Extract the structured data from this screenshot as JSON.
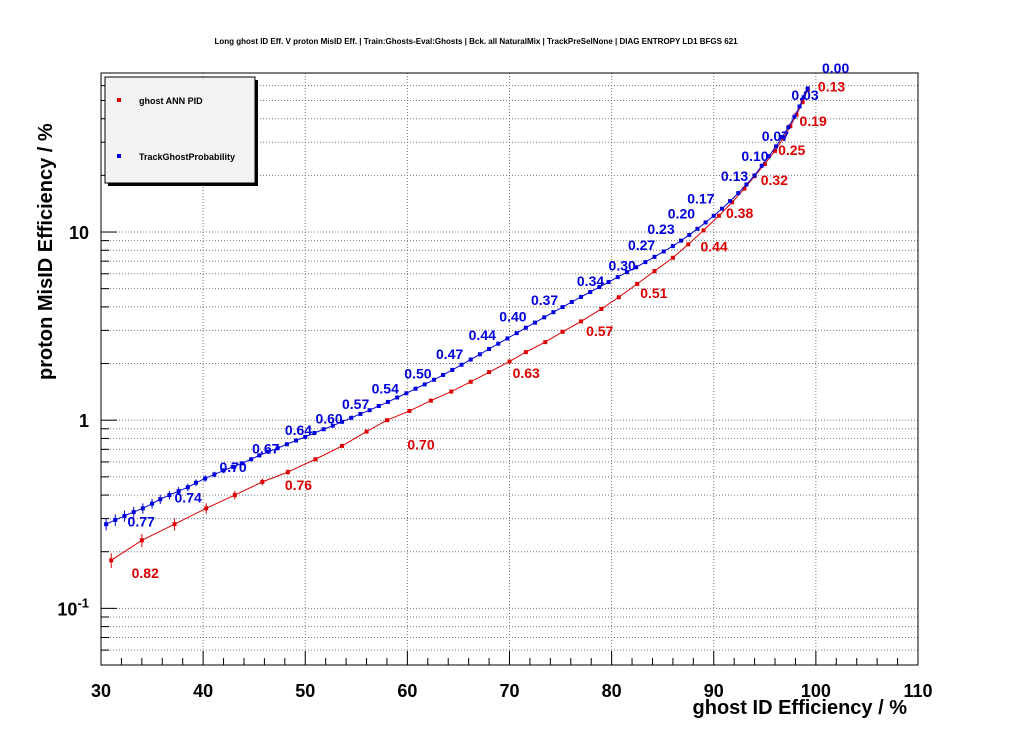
{
  "chart_data": {
    "type": "scatter",
    "title": "Long ghost ID Eff. V proton MisID Eff. | Train:Ghosts-Eval:Ghosts | Bck. all NaturalMix | TrackPreSelNone | DIAG ENTROPY LD1 BFGS 621",
    "xlabel": "ghost ID Efficiency / %",
    "ylabel": "proton MisID Efficiency / %",
    "xlim": [
      30,
      110
    ],
    "ylim": [
      0.05,
      70
    ],
    "y_scale": "log",
    "grid": true,
    "legend_position": "top-left",
    "x_ticks": [
      "30",
      "40",
      "50",
      "60",
      "70",
      "80",
      "90",
      "100",
      "110"
    ],
    "y_ticks": [
      {
        "value": 0.1,
        "base": "10",
        "exp": "-1"
      },
      {
        "value": 1,
        "base": "1",
        "exp": ""
      },
      {
        "value": 10,
        "base": "10",
        "exp": ""
      }
    ],
    "colors": {
      "ghost_ann_pid": "#dd0000",
      "track_ghost_probability": "#0000dd"
    },
    "series": [
      {
        "name": "ghost ANN PID",
        "color": "#dd0000",
        "x": [
          31,
          34,
          37.2,
          40.3,
          43.1,
          45.8,
          48.3,
          51,
          53.6,
          56,
          58,
          60.2,
          62.3,
          64.3,
          66.2,
          68,
          70,
          71.6,
          73.5,
          75.2,
          77,
          79,
          80.7,
          82.5,
          84.2,
          86,
          87.5,
          89,
          90.5,
          91.8,
          93,
          94,
          95,
          96,
          96.8,
          97.5,
          98.1,
          98.7,
          99.2
        ],
        "y": [
          0.18,
          0.23,
          0.28,
          0.34,
          0.4,
          0.47,
          0.53,
          0.62,
          0.73,
          0.87,
          1.0,
          1.12,
          1.27,
          1.42,
          1.6,
          1.8,
          2.05,
          2.3,
          2.6,
          2.95,
          3.35,
          3.9,
          4.5,
          5.3,
          6.2,
          7.3,
          8.6,
          10.2,
          12.2,
          14.4,
          17,
          19.8,
          23,
          27,
          31.5,
          36.5,
          42,
          49,
          57
        ]
      },
      {
        "name": "TrackGhostProbability",
        "color": "#0000dd",
        "x": [
          30.5,
          31.4,
          32.3,
          33.2,
          34.1,
          35,
          35.8,
          36.7,
          37.6,
          38.5,
          39.3,
          40.2,
          41.1,
          42,
          42.9,
          43.8,
          44.7,
          45.5,
          46.4,
          47.3,
          48.2,
          49.1,
          50,
          50.9,
          51.8,
          52.7,
          53.6,
          54.5,
          55.4,
          56.3,
          57.2,
          58.1,
          59,
          59.9,
          60.8,
          61.7,
          62.6,
          63.5,
          64.4,
          65.3,
          66.2,
          67.1,
          68,
          68.9,
          69.8,
          70.7,
          71.6,
          72.5,
          73.4,
          74.3,
          75.2,
          76.1,
          77,
          77.9,
          78.8,
          79.7,
          80.6,
          81.5,
          82.4,
          83.3,
          84.2,
          85.1,
          86,
          86.8,
          87.6,
          88.4,
          89.2,
          90,
          90.8,
          91.6,
          92.4,
          93.2,
          94,
          94.7,
          95.4,
          96.1,
          96.7,
          97.3,
          97.9,
          98.4,
          98.8,
          99.2
        ],
        "y": [
          0.28,
          0.295,
          0.31,
          0.325,
          0.34,
          0.36,
          0.38,
          0.4,
          0.42,
          0.44,
          0.465,
          0.49,
          0.515,
          0.54,
          0.565,
          0.59,
          0.62,
          0.65,
          0.68,
          0.71,
          0.745,
          0.78,
          0.815,
          0.855,
          0.895,
          0.935,
          0.98,
          1.03,
          1.08,
          1.13,
          1.19,
          1.25,
          1.32,
          1.39,
          1.47,
          1.55,
          1.64,
          1.74,
          1.85,
          1.97,
          2.1,
          2.24,
          2.39,
          2.55,
          2.72,
          2.9,
          3.1,
          3.3,
          3.52,
          3.75,
          3.99,
          4.25,
          4.52,
          4.8,
          5.1,
          5.42,
          5.76,
          6.12,
          6.5,
          6.92,
          7.38,
          7.88,
          8.42,
          9.0,
          9.65,
          10.4,
          11.25,
          12.2,
          13.3,
          14.6,
          16.1,
          17.9,
          20,
          22.5,
          25.3,
          28.5,
          32,
          36,
          41,
          46.5,
          52,
          58
        ]
      }
    ],
    "annotations": {
      "red": [
        {
          "text": "0.82",
          "x": 33,
          "y": 0.145
        },
        {
          "text": "0.76",
          "x": 48,
          "y": 0.425
        },
        {
          "text": "0.70",
          "x": 60,
          "y": 0.7
        },
        {
          "text": "0.63",
          "x": 70.3,
          "y": 1.68
        },
        {
          "text": "0.57",
          "x": 77.5,
          "y": 2.8
        },
        {
          "text": "0.51",
          "x": 82.8,
          "y": 4.45
        },
        {
          "text": "0.44",
          "x": 88.7,
          "y": 7.9
        },
        {
          "text": "0.38",
          "x": 91.2,
          "y": 11.9
        },
        {
          "text": "0.32",
          "x": 94.6,
          "y": 17.8
        },
        {
          "text": "0.25",
          "x": 96.3,
          "y": 25.6
        },
        {
          "text": "0.19",
          "x": 98.4,
          "y": 36.6
        },
        {
          "text": "0.13",
          "x": 100.2,
          "y": 55.8
        }
      ],
      "blue": [
        {
          "text": "0.77",
          "x": 32.6,
          "y": 0.272
        },
        {
          "text": "0.74",
          "x": 37.2,
          "y": 0.366
        },
        {
          "text": "0.70",
          "x": 41.6,
          "y": 0.53
        },
        {
          "text": "0.67",
          "x": 44.8,
          "y": 0.667
        },
        {
          "text": "0.64",
          "x": 48,
          "y": 0.833
        },
        {
          "text": "0.60",
          "x": 51,
          "y": 0.963
        },
        {
          "text": "0.57",
          "x": 53.6,
          "y": 1.15
        },
        {
          "text": "0.54",
          "x": 56.5,
          "y": 1.39
        },
        {
          "text": "0.50",
          "x": 59.7,
          "y": 1.67
        },
        {
          "text": "0.47",
          "x": 62.8,
          "y": 2.11
        },
        {
          "text": "0.44",
          "x": 66,
          "y": 2.66
        },
        {
          "text": "0.40",
          "x": 69,
          "y": 3.35
        },
        {
          "text": "0.37",
          "x": 72.1,
          "y": 4.09
        },
        {
          "text": "0.34",
          "x": 76.6,
          "y": 5.16
        },
        {
          "text": "0.30",
          "x": 79.7,
          "y": 6.24
        },
        {
          "text": "0.27",
          "x": 81.6,
          "y": 8.04
        },
        {
          "text": "0.23",
          "x": 83.5,
          "y": 9.74
        },
        {
          "text": "0.20",
          "x": 85.5,
          "y": 11.8
        },
        {
          "text": "0.17",
          "x": 87.4,
          "y": 14.2
        },
        {
          "text": "0.13",
          "x": 90.7,
          "y": 18.7
        },
        {
          "text": "0.10",
          "x": 92.7,
          "y": 23.8
        },
        {
          "text": "0.07",
          "x": 94.7,
          "y": 30.4
        },
        {
          "text": "0.03",
          "x": 97.6,
          "y": 50.4
        },
        {
          "text": "0.00",
          "x": 100.6,
          "y": 70.2
        }
      ]
    }
  }
}
